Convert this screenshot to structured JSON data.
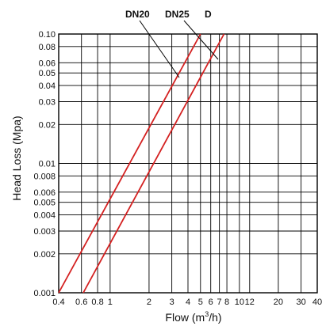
{
  "chart_data": {
    "type": "line",
    "xlabel": "Flow (m",
    "xlabel_sup": "3",
    "xlabel_tail": "/h)",
    "ylabel": "Head Loss (Mpa)",
    "x_scale": "log",
    "y_scale": "log",
    "xlim": [
      0.4,
      40
    ],
    "ylim": [
      0.001,
      0.1
    ],
    "grid": true,
    "x_ticks": [
      "0.4",
      "0.6",
      "0.8",
      "1",
      "2",
      "3",
      "4",
      "5",
      "6",
      "7",
      "8",
      "10",
      "12",
      "20",
      "30",
      "40"
    ],
    "y_ticks": [
      "0.001",
      "0.002",
      "0.003",
      "0.004",
      "0.005",
      "0.006",
      "0.008",
      "0.01",
      "0.02",
      "0.03",
      "0.04",
      "0.05",
      "0.06",
      "0.08",
      "0.10"
    ],
    "series": [
      {
        "name": "DN20",
        "color": "#d42020",
        "points": [
          [
            0.4,
            0.001
          ],
          [
            5.0,
            0.1
          ]
        ]
      },
      {
        "name": "DN25",
        "color": "#d42020",
        "points": [
          [
            0.62,
            0.001
          ],
          [
            7.6,
            0.1
          ]
        ]
      }
    ],
    "labels": {
      "dn20": "DN20",
      "dn25": "DN25",
      "d": "D"
    }
  }
}
